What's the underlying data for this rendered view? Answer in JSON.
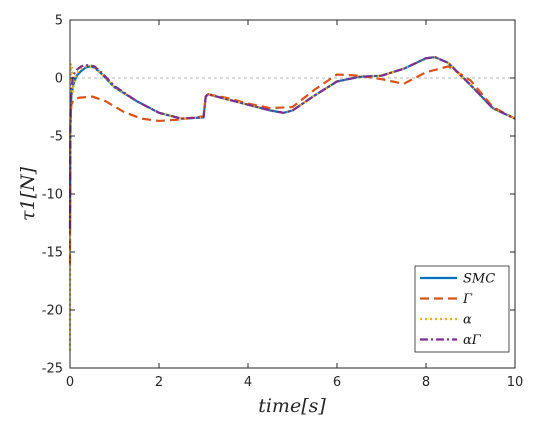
{
  "chart_data": {
    "type": "line",
    "xlabel": "time[s]",
    "ylabel": "τ1[N]",
    "xlim": [
      0,
      10
    ],
    "ylim": [
      -25,
      5
    ],
    "xticks": [
      0,
      2,
      4,
      6,
      8,
      10
    ],
    "yticks": [
      -25,
      -20,
      -15,
      -10,
      -5,
      0,
      5
    ],
    "grid": false,
    "reference_line": {
      "y": 0,
      "style": "dashed",
      "color": "#9a9a9a"
    },
    "legend_position": "bottom-right",
    "series": [
      {
        "name": "SMC",
        "color": "#0072BD",
        "dash": "solid",
        "x": [
          0,
          0.01,
          0.03,
          0.08,
          0.15,
          0.25,
          0.35,
          0.45,
          0.55,
          0.7,
          1.0,
          1.5,
          2.0,
          2.5,
          3.0,
          3.05,
          3.1,
          3.5,
          4.0,
          4.5,
          4.8,
          5.0,
          5.5,
          6.0,
          6.5,
          7.0,
          7.5,
          8.0,
          8.2,
          8.5,
          9.0,
          9.5,
          10.0
        ],
        "y": [
          -13,
          -4,
          -1.5,
          -0.5,
          0.2,
          0.6,
          0.9,
          1.0,
          0.9,
          0.4,
          -0.8,
          -2.0,
          -3.0,
          -3.5,
          -3.4,
          -1.6,
          -1.4,
          -1.8,
          -2.3,
          -2.8,
          -3.0,
          -2.8,
          -1.5,
          -0.3,
          0.1,
          0.2,
          0.8,
          1.7,
          1.8,
          1.3,
          -0.6,
          -2.6,
          -3.5
        ]
      },
      {
        "name": "Γ",
        "color": "#D95319",
        "dash": "dashed",
        "x": [
          0,
          0.01,
          0.03,
          0.08,
          0.2,
          0.5,
          0.8,
          1.2,
          1.6,
          2.0,
          2.4,
          2.8,
          3.0,
          3.05,
          3.1,
          3.5,
          4.0,
          4.5,
          5.0,
          5.5,
          6.0,
          6.5,
          7.0,
          7.5,
          8.0,
          8.5,
          9.0,
          9.5,
          10.0
        ],
        "y": [
          -16,
          -4,
          -2.3,
          -1.9,
          -1.7,
          -1.6,
          -2.0,
          -2.9,
          -3.5,
          -3.7,
          -3.6,
          -3.4,
          -3.3,
          -1.6,
          -1.4,
          -1.7,
          -2.2,
          -2.6,
          -2.5,
          -1.0,
          0.3,
          0.2,
          -0.1,
          -0.5,
          0.5,
          1.0,
          -0.2,
          -2.5,
          -3.5
        ]
      },
      {
        "name": "α",
        "color": "#EDB120",
        "dash": "dotted",
        "x": [
          0,
          0.005,
          0.01,
          0.02,
          0.04,
          0.06,
          0.1,
          0.15,
          0.25,
          0.35,
          0.45,
          0.55,
          0.7,
          1.0,
          1.5,
          2.0,
          2.5,
          3.0,
          3.05,
          3.1,
          3.5,
          4.0,
          4.5,
          4.8,
          5.0,
          5.5,
          6.0,
          6.5,
          7.0,
          7.5,
          8.0,
          8.2,
          8.5,
          9.0,
          9.5,
          10.0
        ],
        "y": [
          -23.5,
          -12,
          -3,
          1.2,
          1.2,
          -1.2,
          -0.2,
          0.4,
          0.8,
          1.0,
          1.0,
          0.9,
          0.4,
          -0.8,
          -2.0,
          -3.0,
          -3.5,
          -3.4,
          -1.6,
          -1.4,
          -1.8,
          -2.3,
          -2.8,
          -3.0,
          -2.8,
          -1.5,
          -0.3,
          0.1,
          0.2,
          0.8,
          1.7,
          1.8,
          1.3,
          -0.6,
          -2.6,
          -3.5
        ]
      },
      {
        "name": "αΓ",
        "color": "#7E2F8E",
        "dash": "dashdot",
        "x": [
          0,
          0.01,
          0.03,
          0.08,
          0.15,
          0.25,
          0.35,
          0.45,
          0.55,
          0.7,
          1.0,
          1.5,
          2.0,
          2.5,
          3.0,
          3.05,
          3.1,
          3.5,
          4.0,
          4.5,
          4.8,
          5.0,
          5.5,
          6.0,
          6.5,
          7.0,
          7.5,
          8.0,
          8.2,
          8.5,
          9.0,
          9.5,
          10.0
        ],
        "y": [
          -13,
          -3,
          -0.8,
          0.3,
          0.7,
          1.0,
          1.1,
          1.1,
          1.0,
          0.5,
          -0.7,
          -2.0,
          -3.0,
          -3.5,
          -3.4,
          -1.6,
          -1.4,
          -1.8,
          -2.3,
          -2.8,
          -3.0,
          -2.8,
          -1.5,
          -0.3,
          0.1,
          0.2,
          0.8,
          1.7,
          1.8,
          1.3,
          -0.6,
          -2.6,
          -3.5
        ]
      }
    ]
  }
}
